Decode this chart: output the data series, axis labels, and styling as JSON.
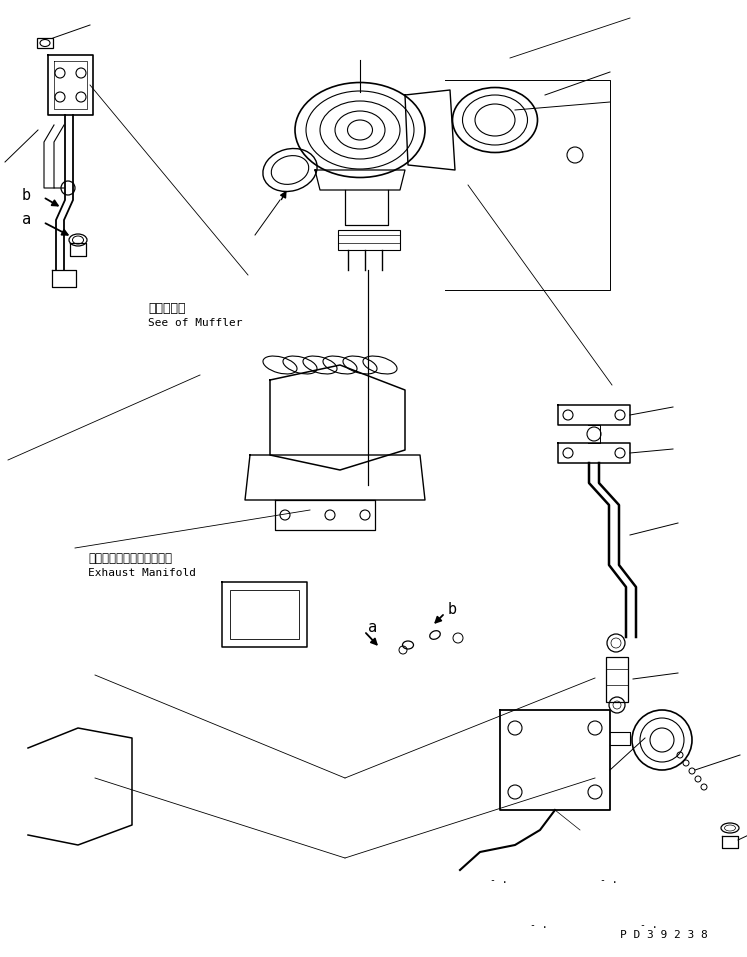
{
  "title": "",
  "bg_color": "#ffffff",
  "line_color": "#000000",
  "fig_width": 7.47,
  "fig_height": 9.57,
  "dpi": 100,
  "part_id": "P D 3 9 2 3 8",
  "label_muffler_jp": "マフラ参照",
  "label_muffler_en": "See of Muffler",
  "label_exhaust_jp": "エキゾーストマニホールド",
  "label_exhaust_en": "Exhaust Manifold"
}
